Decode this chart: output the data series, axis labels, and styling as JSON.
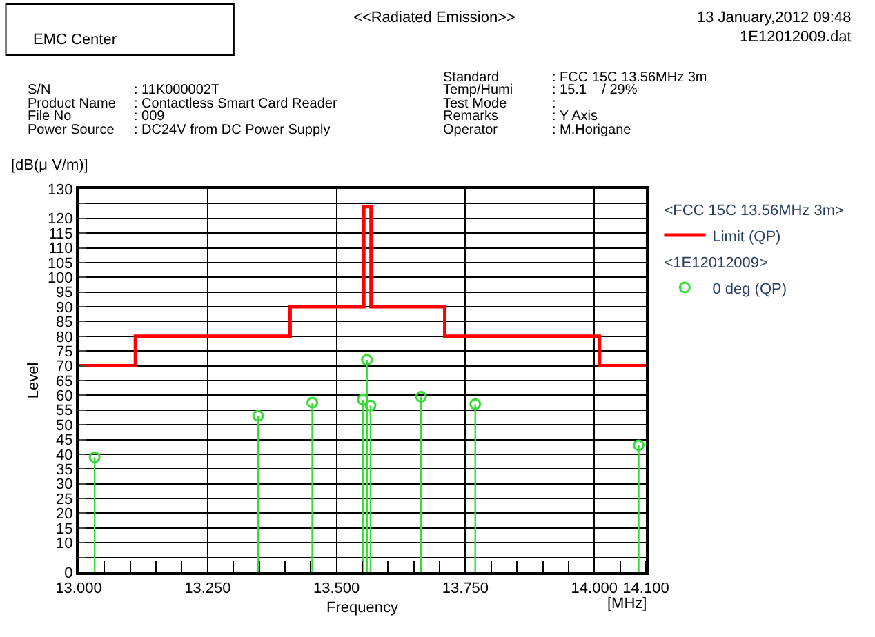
{
  "chart_data": {
    "type": "lollipop",
    "xlabel": "Frequency",
    "ylabel": "Level",
    "annotations": [
      "EMC Center",
      "<<Radiated Emission>>",
      "13 January,2012 09:48",
      "1E12012009.dat",
      "S/N",
      ": 11K000002T",
      "Product Name",
      ": Contactless Smart Card Reader",
      "File No",
      ": 009",
      "Power Source",
      ": DC24V from DC Power Supply",
      "Standard",
      ": FCC 15C 13.56MHz 3m",
      "Temp/Humi",
      ": 15.1    / 29%",
      "Test Mode",
      ":",
      "Remarks",
      ": Y Axis",
      "Operator",
      ": M.Horigane",
      "[dB(μ V/m)]",
      "[MHz]",
      "<FCC 15C 13.56MHz 3m>",
      "<1E12012009>"
    ],
    "series": [
      {
        "name": "Limit (QP)",
        "type": "step",
        "color": "#ff0000",
        "marker": "none",
        "x": [
          13.0,
          13.11,
          13.41,
          13.553,
          13.567,
          13.71,
          14.01,
          14.1
        ],
        "values": [
          70,
          80,
          90,
          124,
          90,
          80,
          70,
          70
        ]
      },
      {
        "name": "0 deg (QP)",
        "color": "#33dd33",
        "marker": "circle",
        "x": [
          13.031,
          13.348,
          13.453,
          13.551,
          13.559,
          13.566,
          13.664,
          13.769,
          14.086
        ],
        "values": [
          39,
          53,
          57.5,
          58.5,
          72,
          56.5,
          59.5,
          57,
          43
        ]
      }
    ],
    "xlim": [
      13.0,
      14.1
    ],
    "xticks": [
      {
        "value": 13.0,
        "label": "13.000"
      },
      {
        "value": 13.25,
        "label": "13.250"
      },
      {
        "value": 13.5,
        "label": "13.500"
      },
      {
        "value": 13.75,
        "label": "13.750"
      },
      {
        "value": 14.0,
        "label": "14.000"
      },
      {
        "value": 14.1,
        "label": "14.100"
      }
    ],
    "ylim": [
      0,
      130
    ],
    "yticks": [
      0,
      {
        "value": 5,
        "label": null
      },
      10,
      15,
      20,
      25,
      30,
      35,
      40,
      45,
      50,
      55,
      60,
      65,
      70,
      75,
      80,
      85,
      90,
      95,
      100,
      105,
      110,
      115,
      120,
      {
        "value": 125,
        "label": null
      },
      130
    ],
    "grid": true,
    "legend": "top right"
  }
}
